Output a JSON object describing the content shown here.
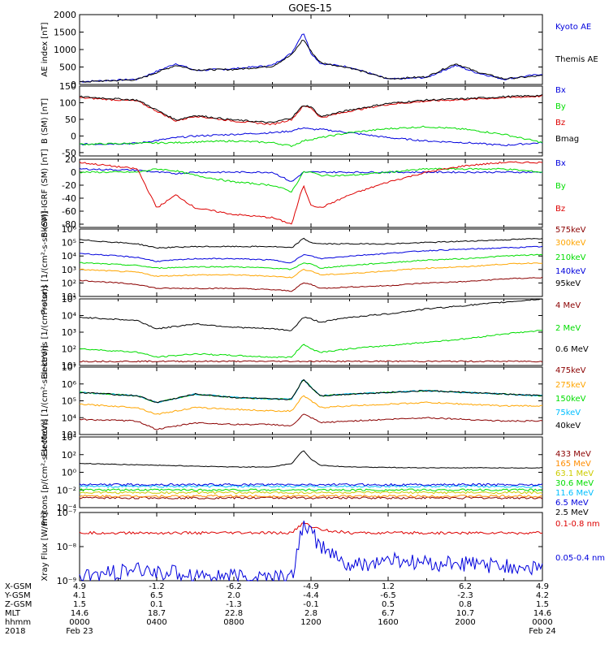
{
  "title": "GOES-15",
  "colors": {
    "black": "#000000",
    "blue": "#0000dd",
    "green": "#00dd00",
    "red": "#dd0000",
    "orange": "#ffa500",
    "darkred": "#8b0000",
    "cyan": "#00bfff",
    "darkorange": "#ff8c00"
  },
  "chart_data": [
    {
      "type": "line",
      "ylabel": "AE index [nT]",
      "ylim": [
        0,
        2000
      ],
      "log": false,
      "yticks": [
        "2000",
        "1500",
        "1000",
        "500",
        "0"
      ],
      "ytick_values": [
        2000,
        1500,
        1000,
        500,
        0
      ],
      "x_hours": [
        0,
        3,
        5,
        6,
        8,
        10,
        11,
        11.6,
        12,
        12.5,
        14,
        16,
        18,
        19.5,
        20.5,
        22,
        24
      ],
      "series": [
        {
          "name": "Kyoto AE",
          "color": "#0000dd",
          "values": [
            80,
            150,
            600,
            400,
            450,
            550,
            900,
            1500,
            900,
            600,
            500,
            150,
            200,
            550,
            350,
            150,
            300
          ]
        },
        {
          "name": "Themis AE",
          "color": "#000000",
          "values": [
            70,
            140,
            550,
            420,
            430,
            520,
            850,
            1300,
            950,
            620,
            480,
            160,
            220,
            600,
            380,
            160,
            250
          ]
        }
      ]
    },
    {
      "type": "line",
      "ylabel": "B (SM) [nT]",
      "ylim": [
        -60,
        150
      ],
      "log": false,
      "yticks": [
        "150",
        "100",
        "50",
        "0",
        "-50"
      ],
      "ytick_values": [
        150,
        100,
        50,
        0,
        -50
      ],
      "x_hours": [
        0,
        3,
        5,
        6,
        8,
        10,
        11,
        11.6,
        12,
        12.5,
        14,
        16,
        18,
        20,
        22,
        24
      ],
      "series": [
        {
          "name": "Bx",
          "color": "#0000dd",
          "values": [
            -25,
            -22,
            -5,
            0,
            5,
            10,
            15,
            25,
            20,
            20,
            10,
            -5,
            -15,
            -20,
            -28,
            -20
          ]
        },
        {
          "name": "By",
          "color": "#00dd00",
          "values": [
            -25,
            -22,
            -20,
            -18,
            -15,
            -20,
            -30,
            -15,
            -10,
            -5,
            10,
            22,
            28,
            20,
            5,
            -20
          ]
        },
        {
          "name": "Bz",
          "color": "#dd0000",
          "values": [
            115,
            105,
            45,
            60,
            45,
            35,
            50,
            90,
            85,
            55,
            75,
            95,
            105,
            110,
            115,
            120
          ]
        },
        {
          "name": "Bmag",
          "color": "#000000",
          "values": [
            118,
            108,
            48,
            62,
            48,
            40,
            55,
            92,
            88,
            58,
            78,
            98,
            108,
            112,
            118,
            122
          ]
        }
      ]
    },
    {
      "type": "line",
      "ylabel": "B (SM)-IGRF (SM) [nT]",
      "ylim": [
        -85,
        20
      ],
      "log": false,
      "yticks": [
        "20",
        "0",
        "-20",
        "-40",
        "-60",
        "-80"
      ],
      "ytick_values": [
        20,
        0,
        -20,
        -40,
        -60,
        -80
      ],
      "x_hours": [
        0,
        3,
        4,
        5,
        6,
        8,
        10,
        11,
        11.6,
        12,
        12.5,
        14,
        16,
        18,
        20,
        22,
        24
      ],
      "series": [
        {
          "name": "Bx",
          "color": "#0000dd",
          "values": [
            5,
            3,
            0,
            -2,
            0,
            0,
            0,
            -15,
            0,
            0,
            0,
            0,
            0,
            0,
            0,
            0,
            0
          ]
        },
        {
          "name": "By",
          "color": "#00dd00",
          "values": [
            0,
            0,
            5,
            2,
            -5,
            -15,
            -20,
            -30,
            0,
            0,
            -5,
            -5,
            0,
            5,
            5,
            5,
            0
          ]
        },
        {
          "name": "Bz",
          "color": "#dd0000",
          "values": [
            15,
            5,
            -55,
            -35,
            -55,
            -65,
            -70,
            -80,
            -20,
            -50,
            -55,
            -35,
            -15,
            0,
            10,
            15,
            15
          ]
        }
      ]
    },
    {
      "type": "line",
      "ylabel": "Protons [1/(cm²-s-sr-keV)]",
      "ylim": [
        1,
        6
      ],
      "log": true,
      "yticks": [
        "10⁶",
        "10⁵",
        "10⁴",
        "10³",
        "10²",
        "10¹"
      ],
      "ytick_values": [
        6,
        5,
        4,
        3,
        2,
        1
      ],
      "x_hours": [
        0,
        3,
        4,
        6,
        8,
        10,
        11,
        11.6,
        12,
        12.5,
        14,
        16,
        18,
        20,
        22,
        24
      ],
      "series": [
        {
          "name": "575keV",
          "color": "#8b0000",
          "values": [
            2.2,
            1.9,
            1.6,
            1.6,
            1.6,
            1.5,
            1.4,
            2.0,
            1.9,
            1.6,
            1.7,
            1.8,
            2.0,
            2.1,
            2.3,
            2.4
          ]
        },
        {
          "name": "300keV",
          "color": "#ffa500",
          "values": [
            3.0,
            2.8,
            2.5,
            2.6,
            2.6,
            2.5,
            2.4,
            3.0,
            2.9,
            2.6,
            2.7,
            2.9,
            3.1,
            3.2,
            3.4,
            3.5
          ]
        },
        {
          "name": "210keV",
          "color": "#00dd00",
          "values": [
            3.5,
            3.3,
            3.1,
            3.2,
            3.2,
            3.1,
            3.0,
            3.5,
            3.4,
            3.1,
            3.3,
            3.5,
            3.7,
            3.8,
            4.0,
            4.1
          ]
        },
        {
          "name": "140keV",
          "color": "#0000dd",
          "values": [
            4.2,
            3.9,
            3.6,
            3.8,
            3.8,
            3.7,
            3.5,
            4.1,
            4.0,
            3.8,
            4.0,
            4.2,
            4.4,
            4.5,
            4.6,
            4.7
          ]
        },
        {
          "name": "95keV",
          "color": "#000000",
          "values": [
            5.2,
            4.9,
            4.6,
            4.7,
            4.7,
            4.7,
            4.6,
            5.3,
            5.0,
            4.9,
            4.9,
            4.9,
            5.0,
            5.1,
            5.2,
            5.3
          ]
        }
      ]
    },
    {
      "type": "line",
      "ylabel": "Electrons [1/(cm²-s-sr)]",
      "ylim": [
        1,
        5
      ],
      "log": true,
      "yticks": [
        "10⁵",
        "10⁴",
        "10³",
        "10²",
        "10¹"
      ],
      "ytick_values": [
        5,
        4,
        3,
        2,
        1
      ],
      "x_hours": [
        0,
        3,
        4,
        6,
        8,
        10,
        11,
        11.6,
        12,
        12.5,
        14,
        16,
        18,
        20,
        22,
        24
      ],
      "series": [
        {
          "name": "4 MeV",
          "color": "#8b0000",
          "values": [
            1.25,
            1.25,
            1.25,
            1.25,
            1.25,
            1.25,
            1.25,
            1.25,
            1.25,
            1.25,
            1.25,
            1.25,
            1.25,
            1.25,
            1.25,
            1.25
          ]
        },
        {
          "name": "2 MeV",
          "color": "#00dd00",
          "values": [
            2.0,
            1.8,
            1.5,
            1.7,
            1.6,
            1.5,
            1.5,
            2.3,
            2.0,
            1.8,
            2.0,
            2.2,
            2.4,
            2.6,
            2.9,
            3.1
          ]
        },
        {
          "name": "0.6 MeV",
          "color": "#000000",
          "values": [
            3.9,
            3.7,
            3.2,
            3.5,
            3.3,
            3.2,
            3.1,
            3.9,
            3.8,
            3.6,
            3.9,
            4.1,
            4.4,
            4.6,
            4.8,
            5.0
          ]
        }
      ]
    },
    {
      "type": "line",
      "ylabel": "Electrons [1/(cm²-s-sr-keV)]",
      "ylim": [
        3,
        7
      ],
      "log": true,
      "yticks": [
        "10⁷",
        "10⁶",
        "10⁵",
        "10⁴",
        "10³"
      ],
      "ytick_values": [
        7,
        6,
        5,
        4,
        3
      ],
      "x_hours": [
        0,
        3,
        4,
        6,
        8,
        10,
        11,
        11.6,
        12,
        12.5,
        14,
        16,
        18,
        20,
        22,
        24
      ],
      "series": [
        {
          "name": "475keV",
          "color": "#8b0000",
          "values": [
            3.9,
            3.8,
            3.3,
            3.7,
            3.6,
            3.6,
            3.5,
            4.2,
            4.0,
            3.7,
            3.8,
            3.9,
            4.0,
            3.9,
            3.8,
            3.8
          ]
        },
        {
          "name": "275keV",
          "color": "#ffa500",
          "values": [
            4.8,
            4.6,
            4.2,
            4.6,
            4.5,
            4.4,
            4.4,
            5.3,
            5.0,
            4.6,
            4.7,
            4.8,
            4.9,
            4.8,
            4.7,
            4.7
          ]
        },
        {
          "name": "150keV",
          "color": "#00dd00",
          "values": [
            5.5,
            5.3,
            4.9,
            5.4,
            5.2,
            5.1,
            5.1,
            6.3,
            5.8,
            5.3,
            5.4,
            5.5,
            5.6,
            5.5,
            5.4,
            5.3
          ]
        },
        {
          "name": "75keV",
          "color": "#00bfff",
          "values": [
            5.5,
            5.3,
            4.9,
            5.4,
            5.2,
            5.1,
            5.1,
            6.3,
            5.8,
            5.3,
            5.4,
            5.5,
            5.6,
            5.5,
            5.4,
            5.3
          ]
        },
        {
          "name": "40keV",
          "color": "#000000",
          "values": [
            5.5,
            5.3,
            4.9,
            5.4,
            5.2,
            5.1,
            5.1,
            6.3,
            5.8,
            5.3,
            5.4,
            5.5,
            5.6,
            5.5,
            5.4,
            5.3
          ]
        }
      ]
    },
    {
      "type": "line",
      "ylabel": "Protons [p/(cm²-s-sr-MeV)]",
      "ylim": [
        -4,
        4
      ],
      "log": true,
      "yticks": [
        "10⁴",
        "10²",
        "10⁰",
        "10⁻²",
        "10⁻⁴"
      ],
      "ytick_values": [
        4,
        2,
        0,
        -2,
        -4
      ],
      "x_hours": [
        0,
        4,
        8,
        10,
        11,
        11.6,
        12,
        12.5,
        14,
        18,
        24
      ],
      "series": [
        {
          "name": "433 MeV",
          "color": "#8b0000",
          "values": [
            -2.9,
            -2.9,
            -2.9,
            -2.9,
            -2.9,
            -2.9,
            -2.9,
            -2.9,
            -2.9,
            -2.9,
            -2.9
          ]
        },
        {
          "name": "165 MeV",
          "color": "#ff8c00",
          "values": [
            -2.7,
            -2.7,
            -2.7,
            -2.7,
            -2.7,
            -2.7,
            -2.7,
            -2.7,
            -2.7,
            -2.7,
            -2.7
          ]
        },
        {
          "name": "63.1 MeV",
          "color": "#cccc00",
          "values": [
            -2.3,
            -2.3,
            -2.3,
            -2.3,
            -2.3,
            -2.3,
            -2.3,
            -2.3,
            -2.3,
            -2.3,
            -2.3
          ]
        },
        {
          "name": "30.6 MeV",
          "color": "#00dd00",
          "values": [
            -2.0,
            -2.0,
            -2.0,
            -2.0,
            -2.0,
            -2.0,
            -2.0,
            -2.0,
            -2.0,
            -2.0,
            -2.0
          ]
        },
        {
          "name": "11.6 MeV",
          "color": "#00bfff",
          "values": [
            -1.6,
            -1.6,
            -1.6,
            -1.6,
            -1.6,
            -1.6,
            -1.6,
            -1.6,
            -1.6,
            -1.6,
            -1.6
          ]
        },
        {
          "name": "6.5 MeV",
          "color": "#0000dd",
          "values": [
            -1.4,
            -1.4,
            -1.4,
            -1.4,
            -1.4,
            -1.4,
            -1.4,
            -1.4,
            -1.4,
            -1.4,
            -1.4
          ]
        },
        {
          "name": "2.5 MeV",
          "color": "#000000",
          "values": [
            1.0,
            0.8,
            0.6,
            0.6,
            1.0,
            2.5,
            1.5,
            0.8,
            0.6,
            0.5,
            0.5
          ]
        }
      ]
    },
    {
      "type": "line",
      "ylabel": "Xray Flux [W/m²]",
      "ylim": [
        -9,
        -7
      ],
      "log": true,
      "yticks": [
        "10⁻⁷",
        "10⁻⁸",
        "10⁻⁹"
      ],
      "ytick_values": [
        -7,
        -8,
        -9
      ],
      "x_hours": [
        0,
        3,
        6,
        8,
        10,
        11,
        11.6,
        12,
        12.5,
        14,
        16,
        18,
        20,
        22,
        24
      ],
      "series": [
        {
          "name": "0.1-0.8 nm",
          "color": "#dd0000",
          "values": [
            -7.6,
            -7.6,
            -7.6,
            -7.6,
            -7.6,
            -7.6,
            -7.3,
            -7.4,
            -7.5,
            -7.6,
            -7.6,
            -7.6,
            -7.6,
            -7.6,
            -7.6
          ]
        },
        {
          "name": "0.05-0.4 nm",
          "color": "#0000dd",
          "values": [
            -8.9,
            -8.7,
            -8.8,
            -8.9,
            -8.9,
            -8.9,
            -7.3,
            -7.6,
            -8.0,
            -8.6,
            -8.4,
            -8.5,
            -8.5,
            -8.6,
            -8.6
          ]
        }
      ]
    }
  ],
  "xaxis": {
    "rows": [
      {
        "label": "X-GSM",
        "values": [
          "4.9",
          "-1.2",
          "-6.2",
          "-4.9",
          "1.2",
          "6.2",
          "4.9"
        ]
      },
      {
        "label": "Y-GSM",
        "values": [
          "4.1",
          "6.5",
          "2.0",
          "-4.4",
          "-6.5",
          "-2.3",
          "4.2"
        ]
      },
      {
        "label": "Z-GSM",
        "values": [
          "1.5",
          "0.1",
          "-1.3",
          "-0.1",
          "0.5",
          "0.8",
          "1.5"
        ]
      },
      {
        "label": "MLT",
        "values": [
          "14.6",
          "18.7",
          "22.8",
          "2.8",
          "6.7",
          "10.7",
          "14.6"
        ]
      },
      {
        "label": "hhmm",
        "values": [
          "0000",
          "0400",
          "0800",
          "1200",
          "1600",
          "2000",
          "0000"
        ]
      },
      {
        "label": "2018",
        "values": [
          "Feb 23",
          "",
          "",
          "",
          "",
          "",
          "Feb 24"
        ]
      }
    ]
  }
}
